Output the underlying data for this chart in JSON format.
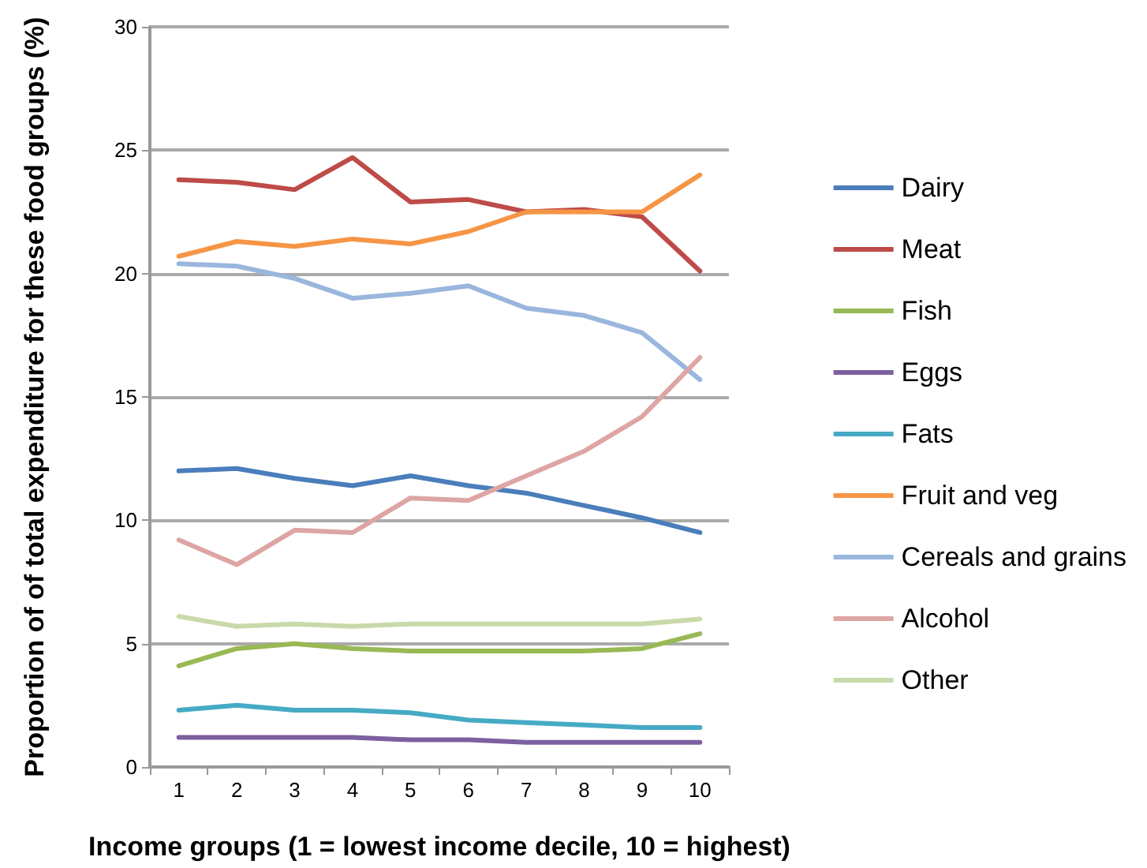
{
  "chart_data": {
    "type": "line",
    "xlabel": "Income groups (1 = lowest income decile, 10 = highest)",
    "ylabel": "Proportion of of total expenditure for these food groups (%)",
    "categories": [
      "1",
      "2",
      "3",
      "4",
      "5",
      "6",
      "7",
      "8",
      "9",
      "10"
    ],
    "ylim": [
      0,
      30
    ],
    "yticks": [
      0,
      5,
      10,
      15,
      20,
      25,
      30
    ],
    "grid": "y",
    "legend": "right",
    "marker": "none",
    "series": [
      {
        "name": "Dairy",
        "color": "#4a7ebb",
        "values": [
          12.0,
          12.1,
          11.7,
          11.4,
          11.8,
          11.4,
          11.1,
          10.6,
          10.1,
          9.5
        ]
      },
      {
        "name": "Meat",
        "color": "#be4b48",
        "values": [
          23.8,
          23.7,
          23.4,
          24.7,
          22.9,
          23.0,
          22.5,
          22.6,
          22.3,
          20.1
        ]
      },
      {
        "name": "Fish",
        "color": "#98b954",
        "values": [
          4.1,
          4.8,
          5.0,
          4.8,
          4.7,
          4.7,
          4.7,
          4.7,
          4.8,
          5.4
        ]
      },
      {
        "name": "Eggs",
        "color": "#7d60a0",
        "values": [
          1.2,
          1.2,
          1.2,
          1.2,
          1.1,
          1.1,
          1.0,
          1.0,
          1.0,
          1.0
        ]
      },
      {
        "name": "Fats",
        "color": "#46aac5",
        "values": [
          2.3,
          2.5,
          2.3,
          2.3,
          2.2,
          1.9,
          1.8,
          1.7,
          1.6,
          1.6
        ]
      },
      {
        "name": "Fruit and veg",
        "color": "#f69545",
        "values": [
          20.7,
          21.3,
          21.1,
          21.4,
          21.2,
          21.7,
          22.5,
          22.5,
          22.5,
          24.0
        ]
      },
      {
        "name": "Cereals and grains",
        "color": "#99b6dd",
        "values": [
          20.4,
          20.3,
          19.8,
          19.0,
          19.2,
          19.5,
          18.6,
          18.3,
          17.6,
          15.7
        ]
      },
      {
        "name": "Alcohol",
        "color": "#dda5a4",
        "values": [
          9.2,
          8.2,
          9.6,
          9.5,
          10.9,
          10.8,
          11.8,
          12.8,
          14.2,
          16.6
        ]
      },
      {
        "name": "Other",
        "color": "#c8daa9",
        "values": [
          6.1,
          5.7,
          5.8,
          5.7,
          5.8,
          5.8,
          5.8,
          5.8,
          5.8,
          6.0
        ]
      }
    ]
  }
}
